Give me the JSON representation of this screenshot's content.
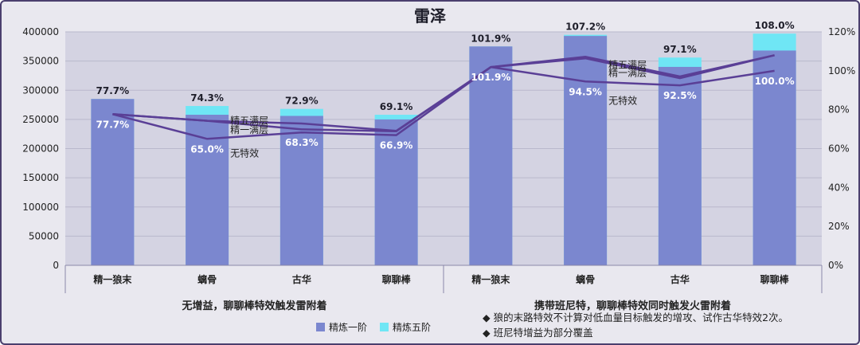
{
  "chart_data": {
    "type": "bar",
    "title": "雷泽",
    "categories": [
      "精一狼末",
      "螭骨",
      "古华",
      "聊聊棒",
      "精一狼末",
      "螭骨",
      "古华",
      "聊聊棒"
    ],
    "groups": [
      {
        "label": "无增益，聊聊棒特效触发雷附着",
        "span": [
          0,
          3
        ]
      },
      {
        "label": "携带班尼特，聊聊棒特效同时触发火雷附着",
        "span": [
          4,
          7
        ]
      }
    ],
    "series": [
      {
        "name": "精炼一阶",
        "kind": "bar",
        "color": "#7b87cf",
        "values": [
          285000,
          258000,
          256000,
          250000,
          375000,
          393000,
          340000,
          368000
        ]
      },
      {
        "name": "精炼五阶",
        "kind": "bar",
        "color": "#6fe6f5",
        "values": [
          285000,
          273000,
          268000,
          258000,
          375000,
          395000,
          356000,
          397000
        ]
      }
    ],
    "line_series": [
      {
        "role": "精五满层",
        "color": "#5a3f96",
        "values": [
          0.777,
          0.743,
          0.729,
          0.691,
          1.019,
          1.072,
          0.971,
          1.08
        ]
      },
      {
        "role": "精一满层",
        "color": "#5a3f96",
        "values": [
          0.777,
          0.743,
          0.699,
          0.689,
          1.019,
          1.064,
          0.962,
          1.08
        ]
      },
      {
        "role": "无特效",
        "color": "#5a3f96",
        "values": [
          0.777,
          0.65,
          0.683,
          0.669,
          1.019,
          0.945,
          0.925,
          1.0
        ]
      }
    ],
    "labels_top": [
      "77.7%",
      "74.3%",
      "72.9%",
      "69.1%",
      "101.9%",
      "107.2%",
      "97.1%",
      "108.0%"
    ],
    "labels_inside": [
      "77.7%",
      "65.0%",
      "68.3%",
      "66.9%",
      "101.9%",
      "94.5%",
      "92.5%",
      "100.0%"
    ],
    "line_annotations": [
      {
        "text": "精五满层",
        "near_index": 1
      },
      {
        "text": "精一满层",
        "near_index": 1
      },
      {
        "text": "无特效",
        "near_index": 1
      },
      {
        "text": "精五满层",
        "near_index": 5
      },
      {
        "text": "精一满层",
        "near_index": 5
      },
      {
        "text": "无特效",
        "near_index": 5
      }
    ],
    "y_left": {
      "min": 0,
      "max": 400000,
      "step": 50000
    },
    "y_right": {
      "min": 0,
      "max": 1.2,
      "step": 0.2,
      "format": "percent"
    },
    "grid": true,
    "legend_position": "bottom",
    "notes": [
      "◆  狼的末路特效不计算对低血量目标触发的增攻、试作古华特效2次。",
      "◆  班尼特增益为部分覆盖"
    ]
  }
}
